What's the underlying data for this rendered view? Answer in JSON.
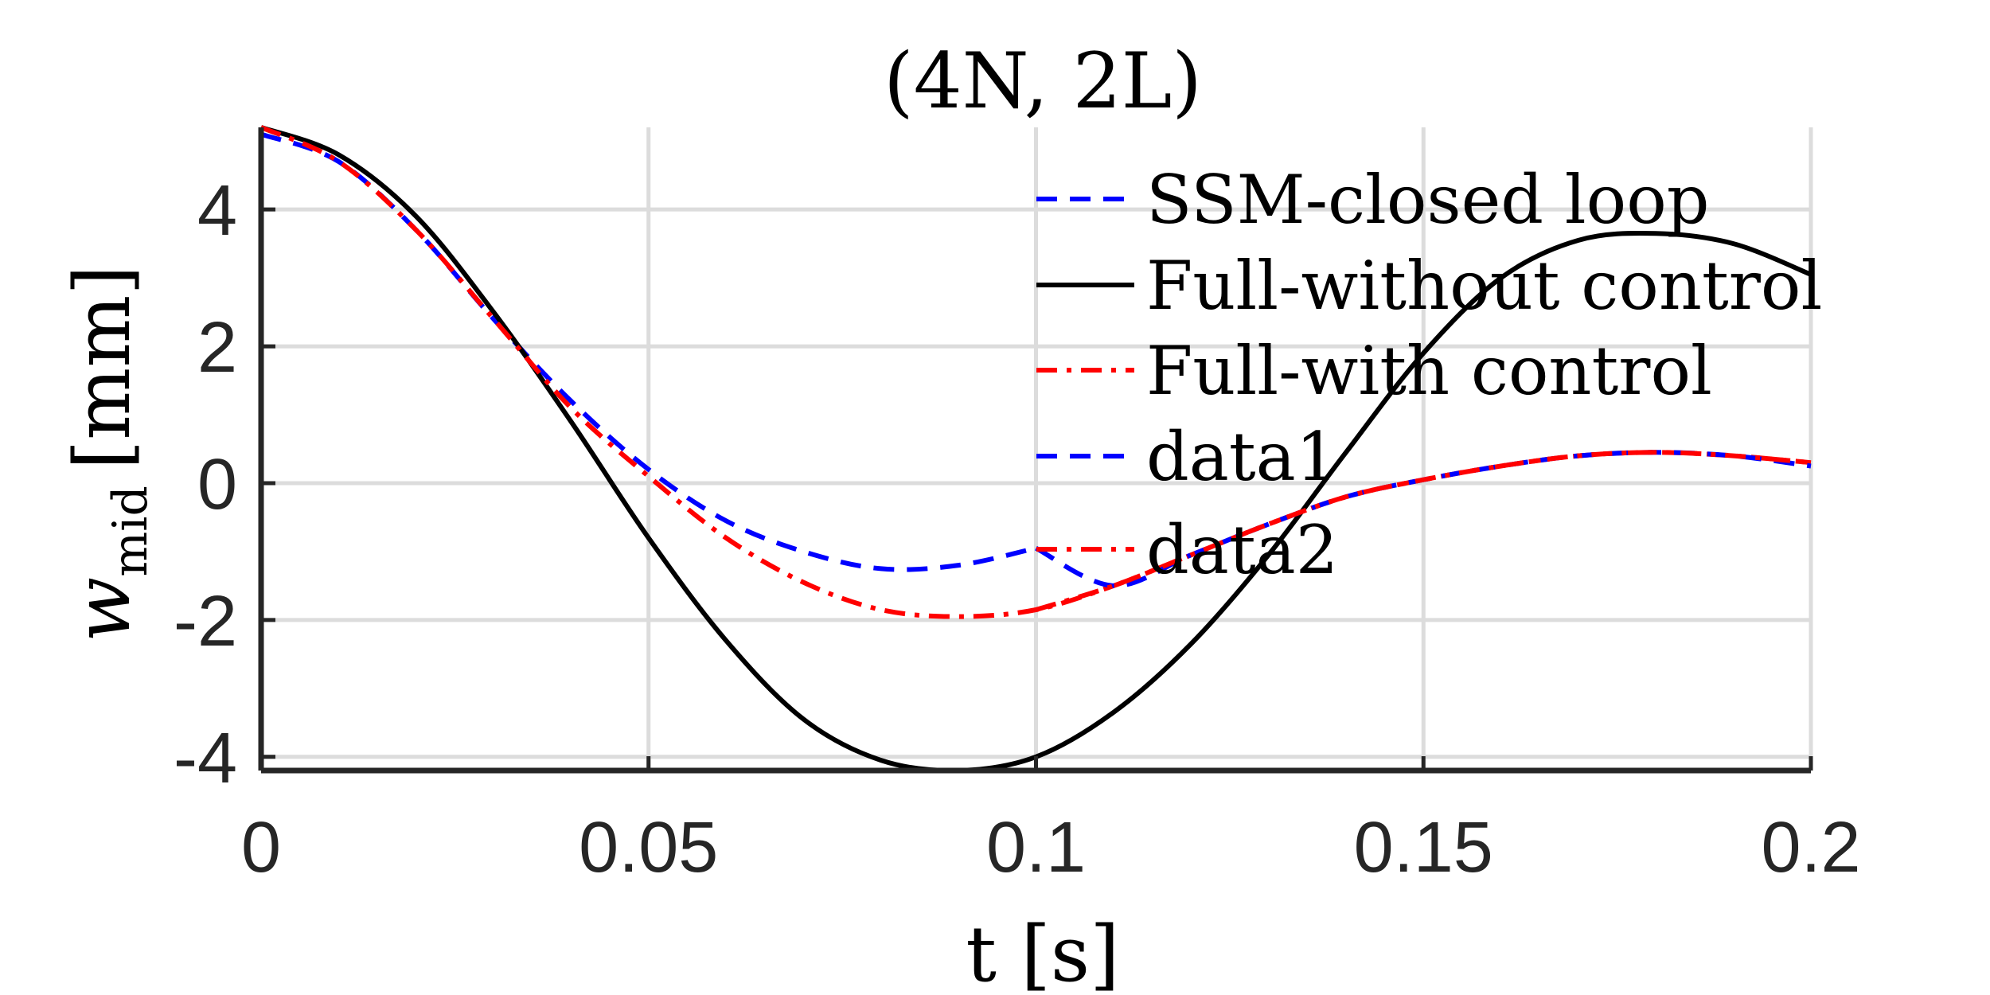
{
  "chart_data": {
    "type": "line",
    "title": "(4N, 2L)",
    "xlabel": "t [s]",
    "ylabel": "w_mid [mm]",
    "ylabel_main": "w",
    "ylabel_sub": "mid",
    "ylabel_unit": "[mm]",
    "xlim": [
      0,
      0.2
    ],
    "ylim": [
      -4.2,
      5.2
    ],
    "xticks": [
      0,
      0.05,
      0.1,
      0.15,
      0.2
    ],
    "xtick_labels": [
      "0",
      "0.05",
      "0.1",
      "0.15",
      "0.2"
    ],
    "yticks": [
      -4,
      -2,
      0,
      2,
      4
    ],
    "ytick_labels": [
      "-4",
      "-2",
      "0",
      "2",
      "4"
    ],
    "grid": true,
    "legend_position": "top-right",
    "series": [
      {
        "name": "SSM-closed loop",
        "color": "#0000ff",
        "style": "dashed",
        "x": [
          0,
          0.01,
          0.02,
          0.03,
          0.04,
          0.05,
          0.06,
          0.07,
          0.08,
          0.09,
          0.1
        ],
        "y": [
          5.1,
          4.7,
          3.7,
          2.4,
          1.2,
          0.2,
          -0.55,
          -1.0,
          -1.25,
          -1.2,
          -0.95
        ]
      },
      {
        "name": "Full-without control",
        "color": "#000000",
        "style": "solid",
        "x": [
          0,
          0.01,
          0.02,
          0.03,
          0.04,
          0.05,
          0.06,
          0.07,
          0.08,
          0.09,
          0.1,
          0.11,
          0.12,
          0.13,
          0.14,
          0.15,
          0.16,
          0.17,
          0.18,
          0.19,
          0.2
        ],
        "y": [
          5.2,
          4.8,
          3.9,
          2.5,
          0.9,
          -0.8,
          -2.3,
          -3.45,
          -4.05,
          -4.2,
          -4.0,
          -3.35,
          -2.35,
          -1.05,
          0.45,
          1.9,
          3.0,
          3.55,
          3.65,
          3.5,
          3.05
        ]
      },
      {
        "name": "Full-with control",
        "color": "#ff0000",
        "style": "dashdot",
        "x": [
          0,
          0.01,
          0.02,
          0.03,
          0.04,
          0.05,
          0.06,
          0.07,
          0.08,
          0.09,
          0.1,
          0.11,
          0.12,
          0.13,
          0.14,
          0.15,
          0.16,
          0.17,
          0.18,
          0.19,
          0.2
        ],
        "y": [
          5.2,
          4.7,
          3.7,
          2.4,
          1.1,
          0.1,
          -0.8,
          -1.45,
          -1.85,
          -1.95,
          -1.85,
          -1.5,
          -1.05,
          -0.6,
          -0.2,
          0.05,
          0.25,
          0.4,
          0.45,
          0.4,
          0.3
        ]
      },
      {
        "name": "data1",
        "color": "#0000ff",
        "style": "dashed",
        "x": [
          0.1,
          0.11,
          0.12,
          0.13,
          0.14,
          0.15,
          0.16,
          0.17,
          0.18,
          0.19,
          0.2
        ],
        "y": [
          -0.95,
          -1.5,
          -1.05,
          -0.6,
          -0.2,
          0.05,
          0.25,
          0.4,
          0.45,
          0.4,
          0.25
        ]
      },
      {
        "name": "data2",
        "color": "#ff0000",
        "style": "dashdot",
        "x": [
          0.1,
          0.11,
          0.12,
          0.13,
          0.14,
          0.15,
          0.16,
          0.17,
          0.18,
          0.19,
          0.2
        ],
        "y": [
          -1.85,
          -1.5,
          -1.05,
          -0.6,
          -0.2,
          0.05,
          0.25,
          0.4,
          0.45,
          0.4,
          0.3
        ]
      }
    ]
  }
}
